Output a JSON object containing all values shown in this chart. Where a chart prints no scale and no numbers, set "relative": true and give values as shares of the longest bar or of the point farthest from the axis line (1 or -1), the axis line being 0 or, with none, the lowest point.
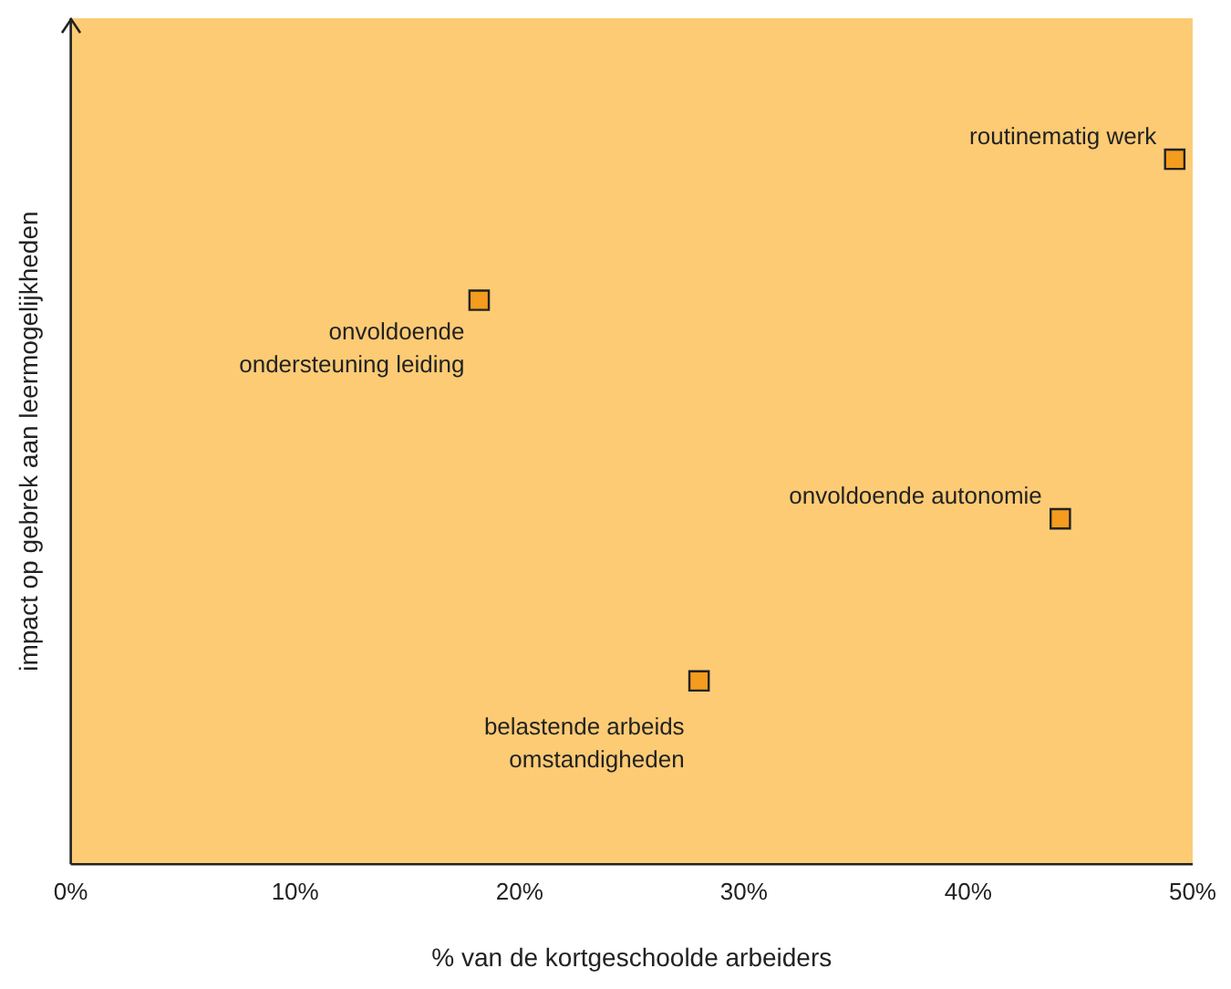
{
  "chart_data": {
    "type": "scatter",
    "xlabel": "% van de kortgeschoolde arbeiders",
    "ylabel": "impact op gebrek aan leermogelijkheden",
    "relative": true,
    "x": [
      49.2,
      18.2,
      44.1,
      28.0
    ],
    "values": [
      1,
      0.8,
      0.49,
      0.26
    ],
    "color": "#f39c1e",
    "marker": "square",
    "grid": false,
    "legend": false,
    "xlim": [
      0,
      50
    ],
    "xticks": [
      {
        "value": 0,
        "label": "0%"
      },
      {
        "value": 10,
        "label": "10%"
      },
      {
        "value": 20,
        "label": "20%"
      },
      {
        "value": 30,
        "label": "30%"
      },
      {
        "value": 40,
        "label": "40%"
      },
      {
        "value": 50,
        "label": "50%"
      }
    ],
    "annotations": [
      {
        "text": "routinematig werk",
        "x": 49.2,
        "y": 1
      },
      {
        "text": "onvoldoende\nondersteuning leiding",
        "x": 18.2,
        "y": 0.8
      },
      {
        "text": "onvoldoende autonomie",
        "x": 44.1,
        "y": 0.49
      },
      {
        "text": "belastende arbeids\nomstandigheden",
        "x": 28.0,
        "y": 0.26
      }
    ]
  }
}
